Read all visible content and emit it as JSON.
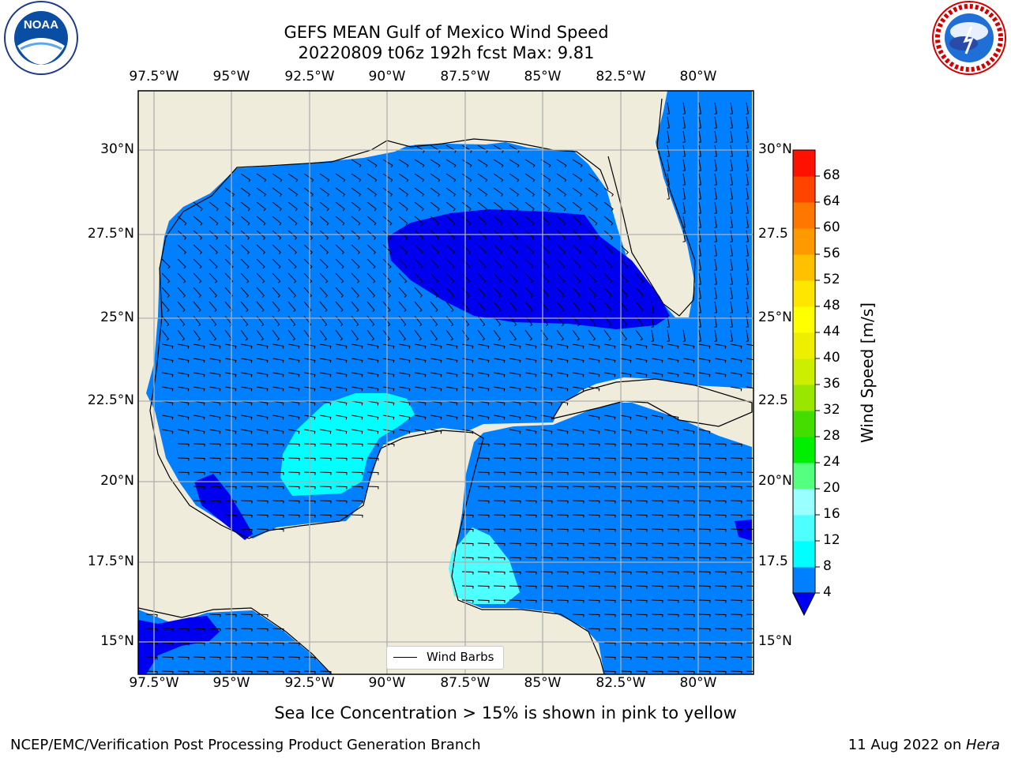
{
  "header": {
    "title_line1": "GEFS MEAN Gulf of Mexico Wind Speed",
    "title_line2": "20220809 t06z 192h fcst   Max: 9.81"
  },
  "logos": {
    "noaa_text": "NOAA",
    "noaa_ring": "NATIONAL OCEANIC AND ATMOSPHERIC ADMINISTRATION · U.S. DEPARTMENT OF COMMERCE",
    "nws_ring": "NATIONAL WEATHER SERVICE"
  },
  "map": {
    "lon_labels": [
      "97.5°W",
      "95°W",
      "92.5°W",
      "90°W",
      "87.5°W",
      "85°W",
      "82.5°W",
      "80°W"
    ],
    "lat_labels_left": [
      "30°N",
      "27.5°N",
      "25°N",
      "22.5°N",
      "20°N",
      "17.5°N",
      "15°N"
    ],
    "lat_labels_right": [
      "30°N",
      "27.5",
      "25°N",
      "22.5",
      "20°N",
      "17.5",
      "15°N"
    ],
    "legend_label": "Wind Barbs",
    "colors": {
      "land": "#efecdc",
      "ws_4_8": "#0080ff",
      "ws_under_4": "#0000f0",
      "ws_8_12": "#00ffff",
      "ws_12_16": "#4dffff",
      "grid": "#b0b0b0"
    }
  },
  "colorbar": {
    "label": "Wind Speed [m/s]",
    "ticks": [
      "4",
      "8",
      "12",
      "16",
      "20",
      "24",
      "28",
      "32",
      "36",
      "40",
      "44",
      "48",
      "52",
      "56",
      "60",
      "64",
      "68"
    ],
    "colors": [
      "#0080ff",
      "#00ffff",
      "#4dffff",
      "#99ffff",
      "#55ff80",
      "#00ee00",
      "#44dd00",
      "#99e600",
      "#ccee00",
      "#eeee00",
      "#ffff00",
      "#ffe600",
      "#ffc000",
      "#ff9900",
      "#ff7700",
      "#ff4400",
      "#ff1100"
    ],
    "under_color": "#0000f0"
  },
  "caption": "Sea Ice Concentration > 15% is shown in pink to yellow",
  "footer": {
    "left": "NCEP/EMC/Verification Post Processing Product Generation Branch",
    "right_prefix": "11 Aug 2022 on ",
    "right_host": "Hera"
  }
}
